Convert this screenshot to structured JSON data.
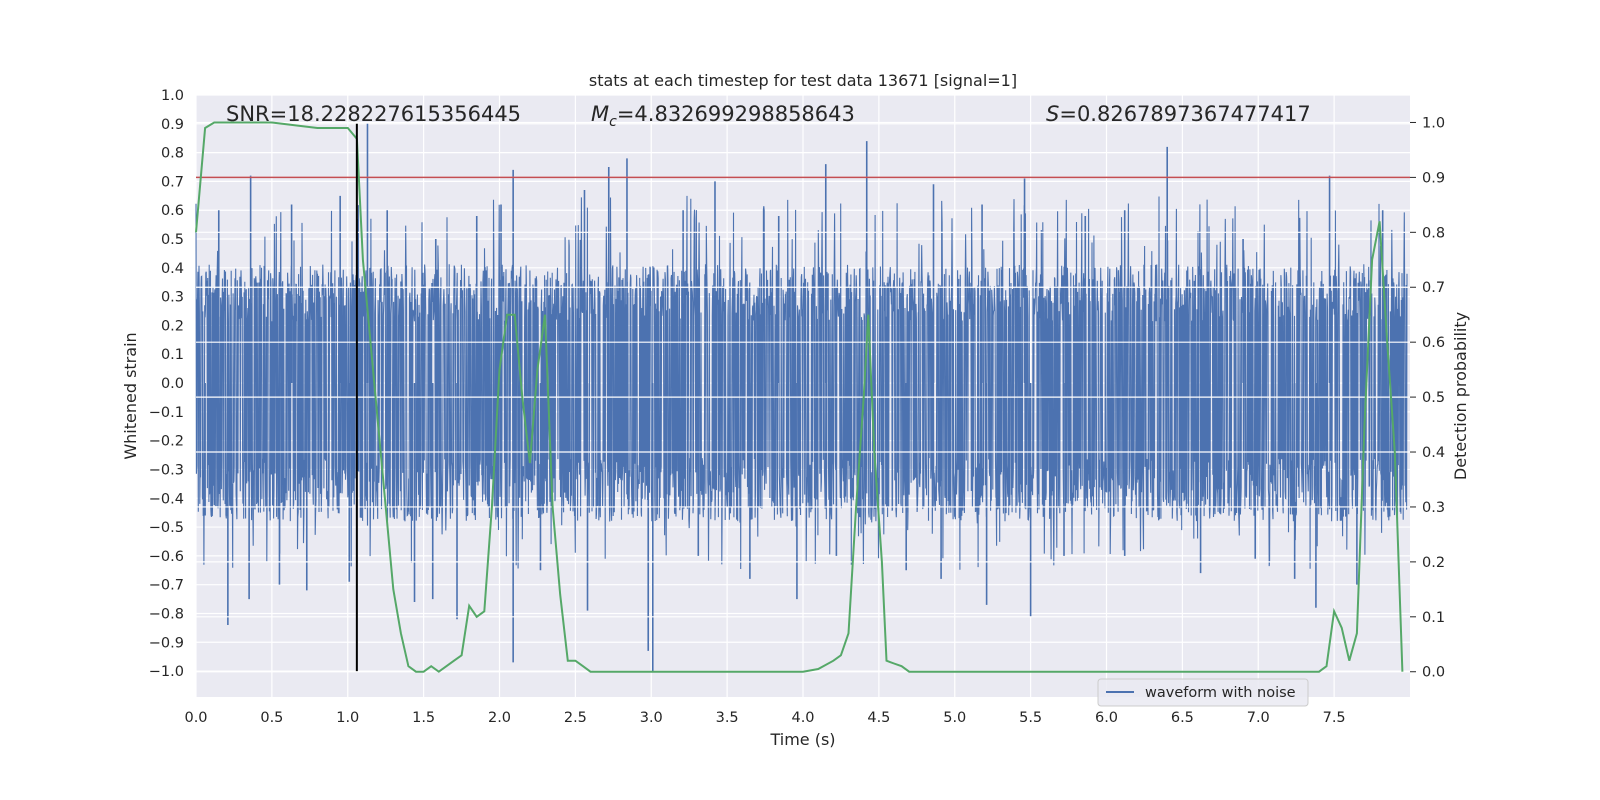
{
  "chart_data": {
    "type": "line",
    "title": "stats at each timestep for test data 13671 [signal=1]",
    "xlabel": "Time (s)",
    "ylabel": "Whitened strain",
    "y2label": "Detection probability",
    "xlim": [
      0.0,
      8.0
    ],
    "ylim": [
      -1.09,
      1.0
    ],
    "y2lim": [
      -0.046,
      1.05
    ],
    "xticks": [
      "0.0",
      "0.5",
      "1.0",
      "1.5",
      "2.0",
      "2.5",
      "3.0",
      "3.5",
      "4.0",
      "4.5",
      "5.0",
      "5.5",
      "6.0",
      "6.5",
      "7.0",
      "7.5"
    ],
    "yticks": [
      "1.0",
      "0.9",
      "0.8",
      "0.7",
      "0.6",
      "0.5",
      "0.4",
      "0.3",
      "0.2",
      "0.1",
      "0.0",
      "−0.1",
      "−0.2",
      "−0.3",
      "−0.4",
      "−0.5",
      "−0.6",
      "−0.7",
      "−0.8",
      "−0.9",
      "−1.0"
    ],
    "y2ticks": [
      "1.0",
      "0.9",
      "0.8",
      "0.7",
      "0.6",
      "0.5",
      "0.4",
      "0.3",
      "0.2",
      "0.1",
      "0.0"
    ],
    "grid": true,
    "annotations": {
      "snr": "SNR=18.228227615356445",
      "mc_symbol": "M",
      "mc_sub": "c",
      "mc_value": "=4.832699298858643",
      "s_symbol": "S",
      "s_value": "=0.8267897367477417"
    },
    "legend": {
      "placement": "lower-right",
      "entries": [
        "waveform with noise"
      ]
    },
    "threshold_line": {
      "y2": 0.9,
      "color": "#c44e52"
    },
    "merger_marker": {
      "x": 1.06,
      "y_from": -1.0,
      "y_to": 0.9,
      "color": "#000000"
    },
    "series": [
      {
        "name": "waveform with noise",
        "axis": "left",
        "color": "#4c72b0",
        "x_start": 0.0,
        "x_end": 7.98,
        "envelope_upper": 0.33,
        "envelope_lower": -0.4,
        "peaks": [
          [
            0.15,
            0.6
          ],
          [
            0.36,
            0.72
          ],
          [
            0.63,
            0.62
          ],
          [
            0.95,
            0.65
          ],
          [
            1.13,
            0.9
          ],
          [
            1.26,
            0.6
          ],
          [
            1.58,
            0.5
          ],
          [
            1.85,
            0.58
          ],
          [
            2.01,
            0.62
          ],
          [
            2.09,
            0.74
          ],
          [
            2.56,
            0.67
          ],
          [
            2.72,
            0.75
          ],
          [
            2.84,
            0.78
          ],
          [
            3.21,
            0.6
          ],
          [
            3.42,
            0.7
          ],
          [
            3.84,
            0.58
          ],
          [
            4.15,
            0.76
          ],
          [
            4.42,
            0.84
          ],
          [
            4.86,
            0.69
          ],
          [
            5.18,
            0.62
          ],
          [
            5.46,
            0.71
          ],
          [
            5.86,
            0.58
          ],
          [
            6.12,
            0.6
          ],
          [
            6.4,
            0.82
          ],
          [
            6.9,
            0.5
          ],
          [
            7.47,
            0.72
          ],
          [
            7.82,
            0.6
          ]
        ],
        "troughs": [
          [
            0.06,
            -0.46
          ],
          [
            0.21,
            -0.84
          ],
          [
            0.35,
            -0.75
          ],
          [
            0.55,
            -0.7
          ],
          [
            0.73,
            -0.72
          ],
          [
            1.01,
            -0.69
          ],
          [
            1.44,
            -0.76
          ],
          [
            1.56,
            -0.75
          ],
          [
            1.72,
            -0.82
          ],
          [
            2.09,
            -0.97
          ],
          [
            2.27,
            -0.65
          ],
          [
            2.58,
            -0.79
          ],
          [
            2.98,
            -0.93
          ],
          [
            3.01,
            -1.0
          ],
          [
            3.31,
            -0.6
          ],
          [
            3.65,
            -0.68
          ],
          [
            3.96,
            -0.75
          ],
          [
            4.22,
            -0.6
          ],
          [
            4.68,
            -0.65
          ],
          [
            4.91,
            -0.68
          ],
          [
            5.21,
            -0.77
          ],
          [
            5.5,
            -0.81
          ],
          [
            5.72,
            -0.6
          ],
          [
            6.12,
            -0.6
          ],
          [
            6.62,
            -0.66
          ],
          [
            6.98,
            -0.61
          ],
          [
            7.24,
            -0.68
          ],
          [
            7.38,
            -0.78
          ],
          [
            7.65,
            -0.7
          ]
        ]
      },
      {
        "name": "",
        "axis": "right",
        "color": "#55a868",
        "x": [
          0.0,
          0.06,
          0.12,
          0.2,
          0.5,
          0.8,
          0.9,
          1.0,
          1.06,
          1.1,
          1.15,
          1.2,
          1.25,
          1.3,
          1.35,
          1.4,
          1.45,
          1.5,
          1.55,
          1.6,
          1.65,
          1.7,
          1.75,
          1.8,
          1.85,
          1.9,
          1.95,
          2.0,
          2.05,
          2.1,
          2.15,
          2.2,
          2.25,
          2.3,
          2.35,
          2.4,
          2.45,
          2.5,
          2.55,
          2.6,
          2.65,
          2.7,
          2.75,
          2.8,
          2.85,
          2.9,
          3.0,
          3.2,
          3.4,
          3.6,
          3.8,
          4.0,
          4.1,
          4.2,
          4.25,
          4.3,
          4.35,
          4.4,
          4.43,
          4.47,
          4.52,
          4.55,
          4.6,
          4.65,
          4.7,
          4.75,
          4.8,
          4.9,
          5.0,
          5.2,
          5.4,
          5.6,
          5.8,
          6.0,
          6.5,
          7.0,
          7.2,
          7.3,
          7.4,
          7.45,
          7.5,
          7.55,
          7.6,
          7.65,
          7.7,
          7.75,
          7.8,
          7.85,
          7.9,
          7.95
        ],
        "y": [
          0.8,
          0.99,
          1.0,
          1.0,
          1.0,
          0.99,
          0.99,
          0.99,
          0.97,
          0.75,
          0.6,
          0.45,
          0.3,
          0.15,
          0.07,
          0.01,
          0.0,
          0.0,
          0.01,
          0.0,
          0.01,
          0.02,
          0.03,
          0.12,
          0.1,
          0.11,
          0.3,
          0.55,
          0.65,
          0.65,
          0.5,
          0.38,
          0.55,
          0.65,
          0.3,
          0.14,
          0.02,
          0.02,
          0.01,
          0.0,
          0.0,
          0.0,
          0.0,
          0.0,
          0.0,
          0.0,
          0.0,
          0.0,
          0.0,
          0.0,
          0.0,
          0.0,
          0.005,
          0.02,
          0.03,
          0.07,
          0.3,
          0.5,
          0.65,
          0.4,
          0.2,
          0.02,
          0.015,
          0.01,
          0.0,
          0.0,
          0.0,
          0.0,
          0.0,
          0.0,
          0.0,
          0.0,
          0.0,
          0.0,
          0.0,
          0.0,
          0.0,
          0.0,
          0.0,
          0.01,
          0.11,
          0.08,
          0.02,
          0.07,
          0.45,
          0.75,
          0.82,
          0.6,
          0.4,
          0.0
        ]
      }
    ]
  }
}
